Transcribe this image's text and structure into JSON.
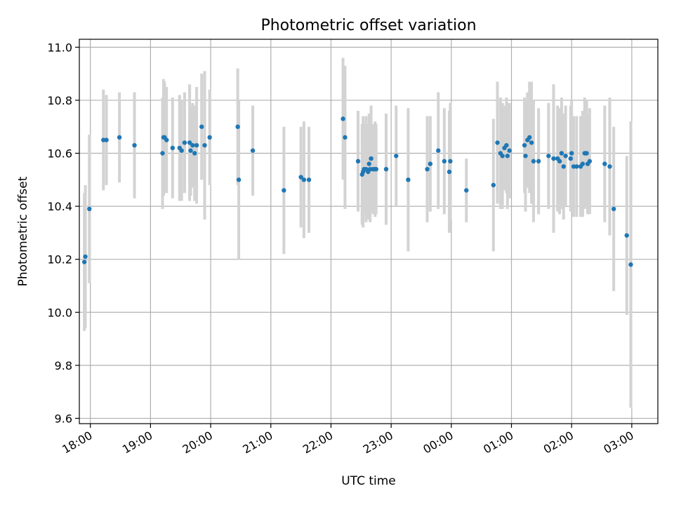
{
  "chart_data": {
    "type": "scatter",
    "title": "Photometric offset variation",
    "xlabel": "UTC time",
    "ylabel": "Photometric offset",
    "grid": true,
    "x_unit": "hours after 17:00 UTC",
    "xlim": [
      "17:49",
      "03:26"
    ],
    "ylim": [
      9.58,
      11.03
    ],
    "x_ticks": [
      "18:00",
      "19:00",
      "20:00",
      "21:00",
      "22:00",
      "23:00",
      "00:00",
      "01:00",
      "02:00",
      "03:00"
    ],
    "y_ticks": [
      "9.6",
      "9.8",
      "10.0",
      "10.2",
      "10.4",
      "10.6",
      "10.8",
      "11.0"
    ],
    "colors": {
      "point": "#1f77b4",
      "errorbar": "#d3d3d3",
      "grid": "#b0b0b0"
    },
    "series": [
      {
        "x": [
          "17:54",
          "17:55",
          "17:59",
          "18:13",
          "18:16",
          "18:29",
          "18:44",
          "19:12",
          "19:13",
          "19:14",
          "19:16",
          "19:22",
          "19:29",
          "19:31",
          "19:34",
          "19:39",
          "19:40",
          "19:42",
          "19:44",
          "19:46",
          "19:51",
          "19:54",
          "19:59",
          "20:27",
          "20:28",
          "20:42",
          "21:13",
          "21:30",
          "21:33",
          "21:38",
          "22:12",
          "22:14",
          "22:27",
          "22:31",
          "22:32",
          "22:33",
          "22:35",
          "22:37",
          "22:38",
          "22:39",
          "22:40",
          "22:42",
          "22:44",
          "22:45",
          "22:55",
          "23:05",
          "23:17",
          "23:36",
          "23:39",
          "23:47",
          "23:53",
          "23:58",
          "23:59",
          "00:15",
          "00:42",
          "00:46",
          "00:49",
          "00:51",
          "00:53",
          "00:55",
          "00:56",
          "00:58",
          "01:13",
          "01:14",
          "01:16",
          "01:18",
          "01:20",
          "01:22",
          "01:27",
          "01:37",
          "01:42",
          "01:46",
          "01:48",
          "01:50",
          "01:52",
          "01:54",
          "01:59",
          "02:00",
          "02:02",
          "02:05",
          "02:09",
          "02:11",
          "02:13",
          "02:15",
          "02:16",
          "02:18",
          "02:33",
          "02:38",
          "02:42",
          "02:55",
          "02:59"
        ],
        "y": [
          10.19,
          10.21,
          10.39,
          10.65,
          10.65,
          10.66,
          10.63,
          10.6,
          10.66,
          10.66,
          10.65,
          10.62,
          10.62,
          10.61,
          10.64,
          10.64,
          10.61,
          10.63,
          10.6,
          10.63,
          10.7,
          10.63,
          10.66,
          10.7,
          10.5,
          10.61,
          10.46,
          10.51,
          10.5,
          10.5,
          10.73,
          10.66,
          10.57,
          10.52,
          10.53,
          10.54,
          10.54,
          10.53,
          10.56,
          10.54,
          10.58,
          10.54,
          10.54,
          10.54,
          10.54,
          10.59,
          10.5,
          10.54,
          10.56,
          10.61,
          10.57,
          10.53,
          10.57,
          10.46,
          10.48,
          10.64,
          10.6,
          10.59,
          10.62,
          10.63,
          10.59,
          10.61,
          10.63,
          10.59,
          10.65,
          10.66,
          10.64,
          10.57,
          10.57,
          10.59,
          10.58,
          10.58,
          10.57,
          10.6,
          10.55,
          10.59,
          10.58,
          10.6,
          10.55,
          10.55,
          10.55,
          10.56,
          10.6,
          10.6,
          10.56,
          10.57,
          10.56,
          10.55,
          10.39,
          10.29,
          10.18
        ],
        "err": [
          0.26,
          0.27,
          0.28,
          0.19,
          0.17,
          0.17,
          0.2,
          0.21,
          0.22,
          0.21,
          0.2,
          0.19,
          0.2,
          0.19,
          0.19,
          0.22,
          0.17,
          0.16,
          0.18,
          0.22,
          0.2,
          0.28,
          0.18,
          0.22,
          0.3,
          0.17,
          0.24,
          0.19,
          0.22,
          0.2,
          0.23,
          0.27,
          0.19,
          0.19,
          0.21,
          0.17,
          0.2,
          0.18,
          0.19,
          0.2,
          0.2,
          0.17,
          0.18,
          0.17,
          0.21,
          0.19,
          0.27,
          0.2,
          0.18,
          0.22,
          0.2,
          0.23,
          0.22,
          0.12,
          0.25,
          0.23,
          0.21,
          0.2,
          0.16,
          0.18,
          0.2,
          0.18,
          0.18,
          0.21,
          0.18,
          0.21,
          0.23,
          0.23,
          0.2,
          0.2,
          0.28,
          0.2,
          0.2,
          0.21,
          0.2,
          0.19,
          0.2,
          0.2,
          0.19,
          0.19,
          0.19,
          0.2,
          0.21,
          0.2,
          0.19,
          0.2,
          0.22,
          0.26,
          0.31,
          0.3,
          0.54
        ]
      }
    ]
  }
}
